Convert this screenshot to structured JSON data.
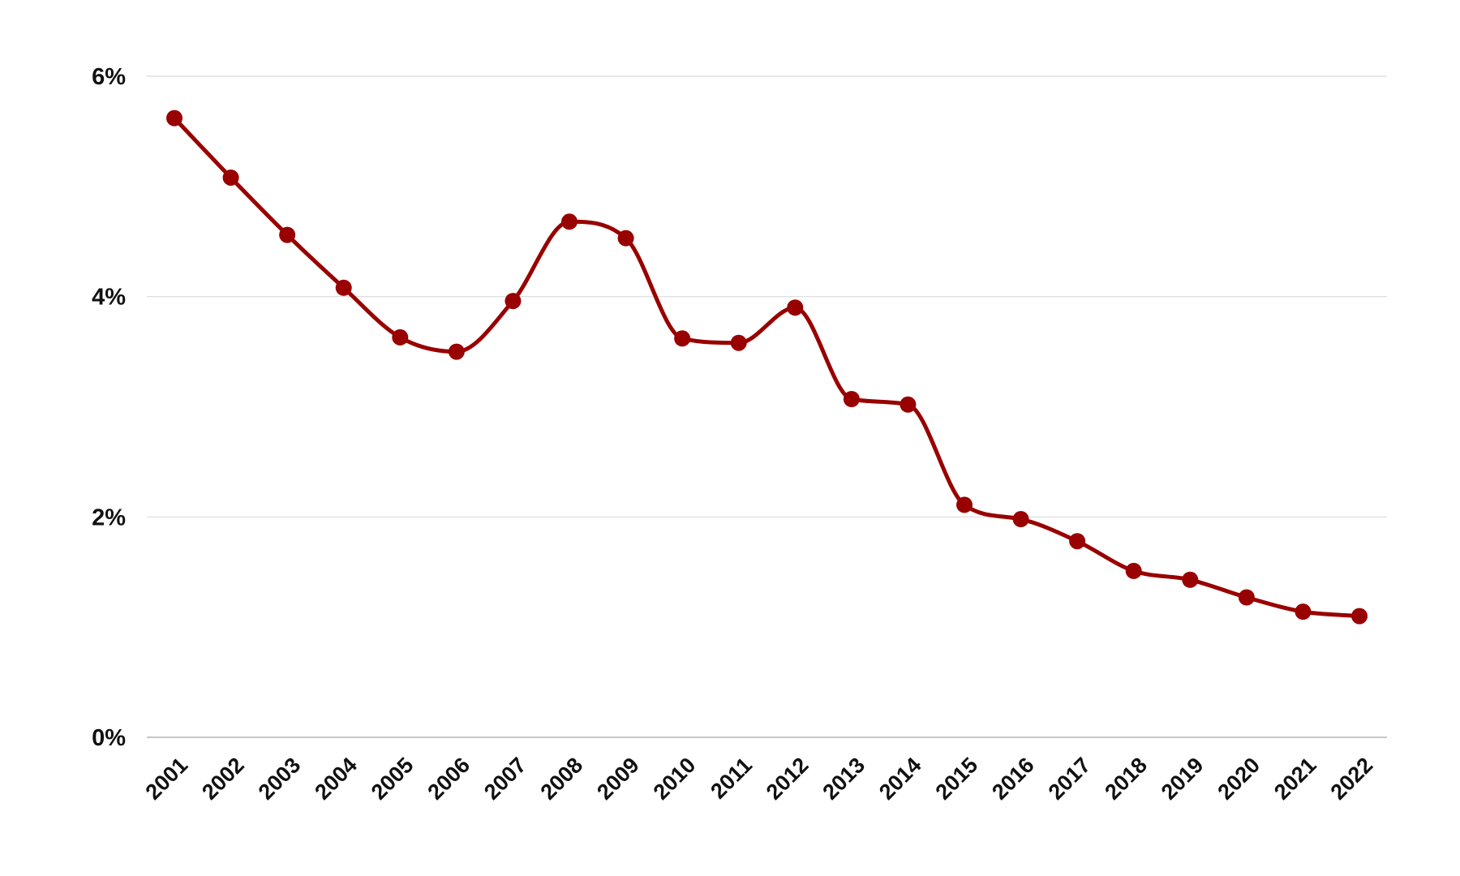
{
  "chart_data": {
    "type": "line",
    "title": "",
    "xlabel": "",
    "ylabel": "",
    "x": [
      "2001",
      "2002",
      "2003",
      "2004",
      "2005",
      "2006",
      "2007",
      "2008",
      "2009",
      "2010",
      "2011",
      "2012",
      "2013",
      "2014",
      "2015",
      "2016",
      "2017",
      "2018",
      "2019",
      "2020",
      "2021",
      "2022"
    ],
    "series": [
      {
        "values": [
          5.62,
          5.08,
          4.56,
          4.08,
          3.63,
          3.5,
          3.96,
          4.68,
          4.53,
          3.62,
          3.58,
          3.9,
          3.07,
          3.02,
          2.11,
          1.98,
          1.78,
          1.51,
          1.43,
          1.27,
          1.14,
          1.1
        ],
        "color": "#990000"
      }
    ],
    "ylim": [
      0,
      6
    ],
    "y_ticks": [
      0,
      2,
      4,
      6
    ],
    "y_tick_labels": [
      "0%",
      "2%",
      "4%",
      "6%"
    ],
    "y_format": "percent",
    "grid": true,
    "smooth": true,
    "markers": true,
    "legend": "none",
    "colors": {
      "series": "#990000",
      "grid": "#d9d9d9",
      "text": "#111111"
    }
  }
}
